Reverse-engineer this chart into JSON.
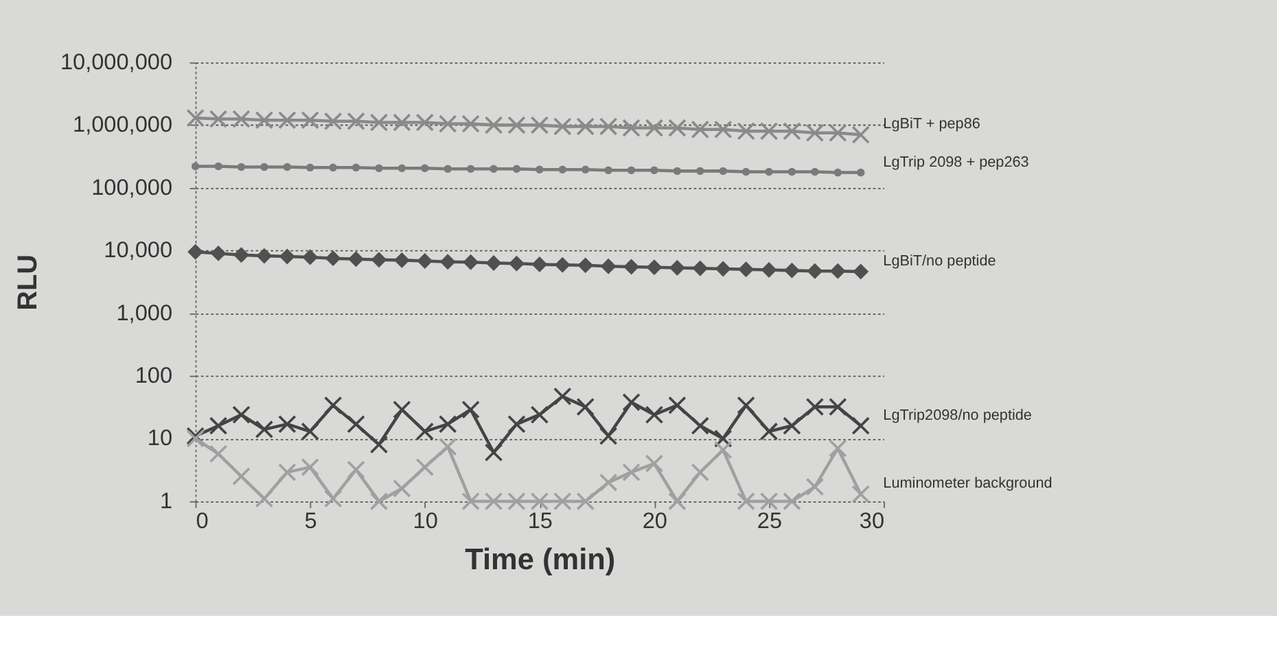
{
  "chart_data": {
    "type": "line",
    "xlabel": "Time (min)",
    "ylabel": "RLU",
    "log": "y",
    "grid": "y",
    "legend": false,
    "xlim": [
      0,
      30
    ],
    "xticks": [
      0,
      5,
      10,
      15,
      20,
      25,
      30
    ],
    "ylim": [
      1,
      10000000
    ],
    "yticks": [
      1,
      10,
      100,
      {
        "value": 1000,
        "label": "1,000"
      },
      {
        "value": 10000,
        "label": "10,000"
      },
      {
        "value": 100000,
        "label": "100,000"
      },
      {
        "value": 1000000,
        "label": "1,000,000"
      },
      {
        "value": 10000000,
        "label": "10,000,000"
      }
    ],
    "line_style": "solid",
    "x": [
      0,
      1,
      2,
      3,
      4,
      5,
      6,
      7,
      8,
      9,
      10,
      11,
      12,
      13,
      14,
      15,
      16,
      17,
      18,
      19,
      20,
      21,
      22,
      23,
      24,
      25,
      26,
      27,
      28,
      29
    ],
    "series": [
      {
        "name": "LgBiT + pep86",
        "color": "#8a8a8a",
        "marker": "cross",
        "values": [
          1300000,
          1250000,
          1250000,
          1200000,
          1200000,
          1200000,
          1150000,
          1150000,
          1100000,
          1100000,
          1100000,
          1050000,
          1050000,
          1000000,
          1000000,
          1000000,
          950000,
          950000,
          950000,
          900000,
          900000,
          900000,
          850000,
          850000,
          800000,
          800000,
          800000,
          750000,
          750000,
          700000
        ]
      },
      {
        "name": "LgTrip 2098 + pep263",
        "color": "#7a7a7a",
        "marker": "circle",
        "values": [
          220000,
          220000,
          215000,
          215000,
          215000,
          210000,
          210000,
          210000,
          205000,
          205000,
          205000,
          200000,
          200000,
          200000,
          200000,
          195000,
          195000,
          195000,
          190000,
          190000,
          190000,
          185000,
          185000,
          185000,
          180000,
          180000,
          180000,
          180000,
          175000,
          175000
        ]
      },
      {
        "name": "LgBiT/no peptide",
        "color": "#505050",
        "marker": "diamond",
        "values": [
          9500,
          9000,
          8500,
          8200,
          8000,
          7800,
          7500,
          7300,
          7100,
          7000,
          6800,
          6600,
          6500,
          6300,
          6200,
          6000,
          5900,
          5800,
          5600,
          5500,
          5400,
          5300,
          5200,
          5100,
          5000,
          4900,
          4800,
          4700,
          4700,
          4600
        ]
      },
      {
        "name": "LgTrip2098/no peptide",
        "color": "#444444",
        "marker": "cross",
        "values": [
          11,
          16,
          24,
          14,
          17,
          13,
          34,
          17,
          8,
          29,
          13,
          17,
          29,
          6,
          17,
          24,
          47,
          32,
          11,
          38,
          24,
          34,
          16,
          10,
          34,
          13,
          16,
          32,
          32,
          16
        ]
      },
      {
        "name": "Luminometer background",
        "color": "#a0a0a0",
        "marker": "cross",
        "values": [
          10,
          5.7,
          2.5,
          1.1,
          2.9,
          3.5,
          1.1,
          3.2,
          1,
          1.6,
          3.5,
          7.4,
          1,
          1,
          1,
          1,
          1,
          1,
          2,
          2.9,
          4,
          1,
          2.9,
          6.6,
          1,
          1,
          1,
          1.7,
          7,
          1.3
        ]
      }
    ]
  }
}
